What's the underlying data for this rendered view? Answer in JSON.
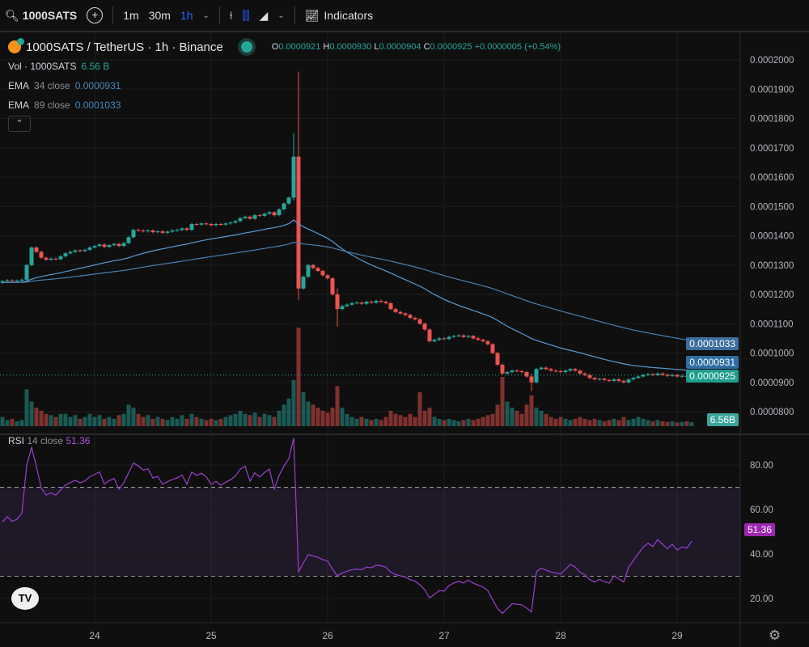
{
  "toolbar": {
    "symbol": "1000SATS",
    "intervals": [
      "1m",
      "30m",
      "1h"
    ],
    "active_interval": "1h",
    "indicators_label": "Indicators"
  },
  "legend": {
    "title": "1000SATS / TetherUS · 1h · Binance",
    "open_label": "O",
    "open": "0.0000921",
    "high_label": "H",
    "high": "0.0000930",
    "low_label": "L",
    "low": "0.0000904",
    "close_label": "C",
    "close": "0.0000925",
    "change": "+0.0000005 (+0.54%)",
    "vol_label": "Vol · 1000SATS",
    "vol_value": "6.56 B",
    "ema34_label": "EMA",
    "ema34_params": "34 close",
    "ema34_value": "0.0000931",
    "ema89_label": "EMA",
    "ema89_params": "89 close",
    "ema89_value": "0.0001033",
    "rsi_label": "RSI",
    "rsi_params": "14 close",
    "rsi_value": "51.36"
  },
  "price_tags": {
    "ema89": "0.0001033",
    "ema34": "0.0000931",
    "last": "0.0000925",
    "volume": "6.56B",
    "rsi": "51.36"
  },
  "colors": {
    "up": "#26a69a",
    "down": "#ef5350",
    "ema34": "#5b9bd5",
    "ema89": "#4a7fb0",
    "rsi": "#9c3fd0"
  },
  "chart_data": {
    "type": "candlestick",
    "price_ticks": [
      "0.0000800",
      "0.0000900",
      "0.0001000",
      "0.0001100",
      "0.0001200",
      "0.0001300",
      "0.0001400",
      "0.0001500",
      "0.0001600",
      "0.0001700",
      "0.0001800",
      "0.0001900",
      "0.0002000"
    ],
    "ylim": [
      8e-05,
      0.0002
    ],
    "x_ticks": [
      {
        "label": "24",
        "hour": 19
      },
      {
        "label": "25",
        "hour": 43
      },
      {
        "label": "26",
        "hour": 67
      },
      {
        "label": "27",
        "hour": 91
      },
      {
        "label": "28",
        "hour": 115
      },
      {
        "label": "29",
        "hour": 139
      }
    ],
    "first_open": 0.000124,
    "closes": [
      0.0001245,
      0.0001248,
      0.0001246,
      0.0001247,
      0.000125,
      0.00013,
      0.000136,
      0.0001345,
      0.0001325,
      0.0001318,
      0.0001322,
      0.000132,
      0.000133,
      0.000134,
      0.0001345,
      0.000135,
      0.0001348,
      0.0001352,
      0.000136,
      0.0001365,
      0.000137,
      0.0001362,
      0.0001368,
      0.0001372,
      0.0001365,
      0.0001375,
      0.0001395,
      0.000142,
      0.0001418,
      0.0001415,
      0.0001418,
      0.0001412,
      0.0001415,
      0.000141,
      0.0001414,
      0.0001418,
      0.000142,
      0.0001425,
      0.000142,
      0.000144,
      0.0001438,
      0.0001442,
      0.000144,
      0.0001436,
      0.000144,
      0.0001438,
      0.0001442,
      0.0001445,
      0.000145,
      0.000146,
      0.0001465,
      0.0001458,
      0.000147,
      0.0001468,
      0.0001475,
      0.000148,
      0.000147,
      0.000149,
      0.000151,
      0.000153,
      0.000167,
      0.000122,
      0.000126,
      0.00013,
      0.000129,
      0.000128,
      0.0001265,
      0.0001255,
      0.00012,
      0.000115,
      0.000116,
      0.0001165,
      0.000117,
      0.0001172,
      0.0001168,
      0.0001175,
      0.0001172,
      0.0001178,
      0.0001175,
      0.000117,
      0.000115,
      0.000114,
      0.0001135,
      0.000113,
      0.000112,
      0.0001115,
      0.00011,
      0.000108,
      0.000104,
      0.0001045,
      0.000105,
      0.0001048,
      0.0001055,
      0.0001058,
      0.000106,
      0.0001055,
      0.0001058,
      0.000105,
      0.0001045,
      0.000104,
      0.000103,
      0.0001,
      9.6e-05,
      9.3e-05,
      9.35e-05,
      9.4e-05,
      9.38e-05,
      9.35e-05,
      9.2e-05,
      9e-05,
      9.45e-05,
      9.5e-05,
      9.45e-05,
      9.4e-05,
      9.38e-05,
      9.35e-05,
      9.4e-05,
      9.45e-05,
      9.4e-05,
      9.3e-05,
      9.25e-05,
      9.15e-05,
      9.1e-05,
      9.12e-05,
      9.08e-05,
      9.05e-05,
      9.1e-05,
      9.05e-05,
      9e-05,
      9.1e-05,
      9.15e-05,
      9.2e-05,
      9.25e-05,
      9.28e-05,
      9.25e-05,
      9.3e-05,
      9.26e-05,
      9.22e-05,
      9.25e-05,
      9.2e-05,
      9.22e-05,
      9.21e-05,
      9.25e-05
    ],
    "wick_extremes": [
      {
        "hour": 60,
        "high": 0.000175,
        "low": 0.000152
      },
      {
        "hour": 61,
        "high": 0.000196,
        "low": 0.000118
      },
      {
        "hour": 69,
        "high": 0.000122,
        "low": 0.000109
      },
      {
        "hour": 109,
        "high": 9.3e-05,
        "low": 8.7e-05
      },
      {
        "hour": 142,
        "high": 9.3e-05,
        "low": 9.04e-05
      }
    ],
    "volumes_b": [
      15,
      10,
      12,
      8,
      10,
      60,
      40,
      30,
      25,
      20,
      18,
      15,
      20,
      20,
      15,
      18,
      12,
      15,
      20,
      15,
      18,
      12,
      15,
      12,
      18,
      20,
      35,
      30,
      20,
      15,
      18,
      12,
      15,
      12,
      10,
      15,
      12,
      18,
      12,
      20,
      15,
      12,
      10,
      12,
      10,
      12,
      15,
      18,
      20,
      25,
      20,
      18,
      22,
      15,
      20,
      18,
      15,
      25,
      35,
      45,
      75,
      160,
      55,
      40,
      35,
      30,
      25,
      22,
      30,
      65,
      30,
      20,
      15,
      12,
      15,
      12,
      10,
      12,
      10,
      15,
      25,
      20,
      18,
      15,
      20,
      15,
      55,
      25,
      30,
      15,
      12,
      10,
      12,
      10,
      8,
      10,
      12,
      10,
      12,
      15,
      18,
      20,
      35,
      80,
      40,
      30,
      25,
      20,
      35,
      50,
      30,
      25,
      20,
      15,
      12,
      15,
      12,
      10,
      12,
      15,
      12,
      10,
      12,
      10,
      8,
      10,
      12,
      10,
      15,
      10,
      12,
      15,
      12,
      10,
      8,
      10,
      8,
      7,
      8,
      6,
      7,
      8,
      6.56
    ],
    "rsi": {
      "period": 14,
      "ticks": [
        "80.00",
        "60.00",
        "40.00",
        "20.00"
      ],
      "bands": [
        70,
        30
      ]
    }
  }
}
